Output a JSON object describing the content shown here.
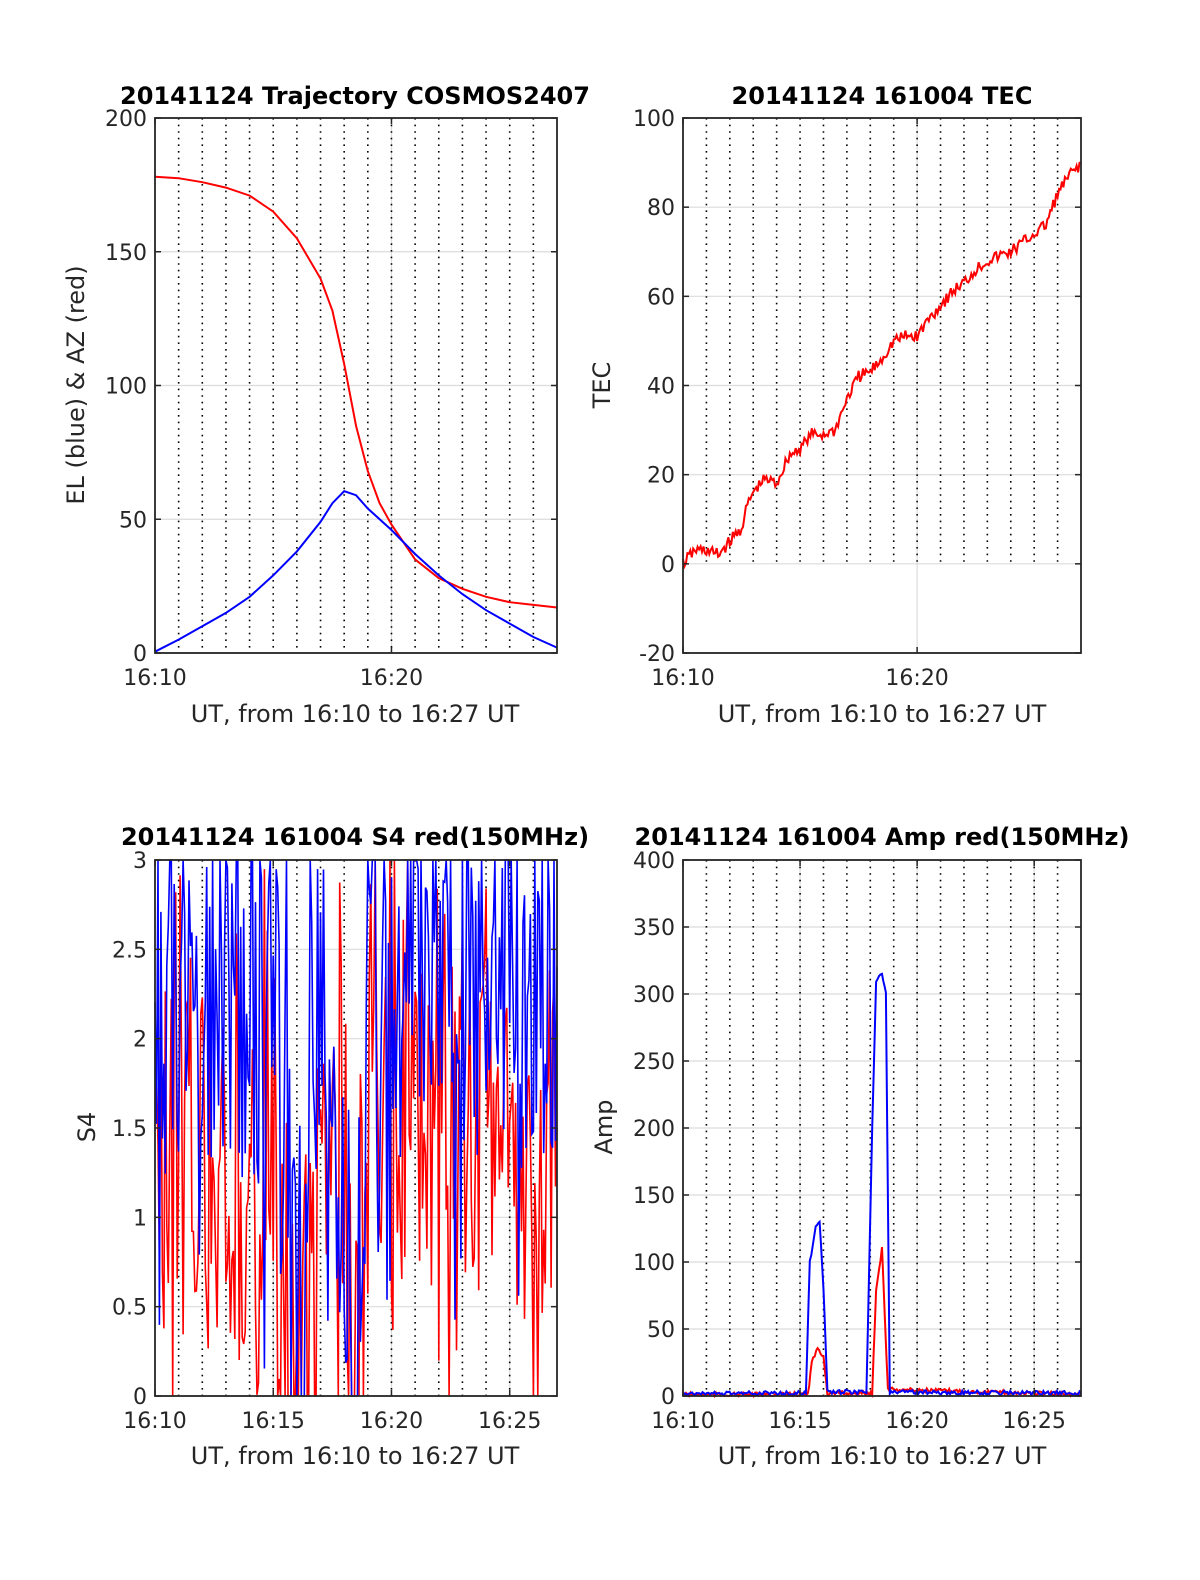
{
  "figure": {
    "background": "#ffffff",
    "colors": {
      "axis": "#262626",
      "grid_solid": "#dcdcdc",
      "grid_dotted": "#000000",
      "red": "#ff0000",
      "blue": "#0000ff"
    }
  },
  "chart_data": [
    {
      "id": "trajectory",
      "type": "line",
      "title": "20141124 Trajectory COSMOS2407",
      "xlabel": "UT, from 16:10 to 16:27 UT",
      "ylabel": "EL (blue) & AZ (red)",
      "xlim": [
        "16:10",
        "16:27"
      ],
      "ylim": [
        0,
        200
      ],
      "xticks": [
        "16:10",
        "16:20"
      ],
      "yticks": [
        0,
        50,
        100,
        150,
        200
      ],
      "dotted_vlines_every_min": 1,
      "grid": true,
      "series": [
        {
          "color": "#ff0000",
          "points": [
            [
              "16:10",
              178
            ],
            [
              "16:11",
              177.5
            ],
            [
              "16:12",
              176
            ],
            [
              "16:13",
              174
            ],
            [
              "16:14",
              171
            ],
            [
              "16:15",
              165
            ],
            [
              "16:16",
              155
            ],
            [
              "16:17",
              140
            ],
            [
              "16:17:30",
              128
            ],
            [
              "16:18",
              108
            ],
            [
              "16:18:30",
              85
            ],
            [
              "16:19",
              68
            ],
            [
              "16:19:30",
              56
            ],
            [
              "16:20",
              48
            ],
            [
              "16:21",
              35
            ],
            [
              "16:22",
              28
            ],
            [
              "16:23",
              24
            ],
            [
              "16:24",
              21
            ],
            [
              "16:25",
              19
            ],
            [
              "16:26",
              18
            ],
            [
              "16:27",
              17
            ]
          ]
        },
        {
          "color": "#0000ff",
          "points": [
            [
              "16:10",
              0.5
            ],
            [
              "16:11",
              5
            ],
            [
              "16:12",
              10
            ],
            [
              "16:13",
              15
            ],
            [
              "16:14",
              21
            ],
            [
              "16:15",
              29
            ],
            [
              "16:16",
              38
            ],
            [
              "16:17",
              49
            ],
            [
              "16:17:30",
              56
            ],
            [
              "16:18",
              60.5
            ],
            [
              "16:18:30",
              59
            ],
            [
              "16:19",
              54
            ],
            [
              "16:20",
              46
            ],
            [
              "16:21",
              37
            ],
            [
              "16:22",
              29
            ],
            [
              "16:23",
              22
            ],
            [
              "16:24",
              16
            ],
            [
              "16:25",
              11
            ],
            [
              "16:26",
              6
            ],
            [
              "16:27",
              2
            ]
          ]
        }
      ]
    },
    {
      "id": "tec",
      "type": "line",
      "title": "20141124 161004 TEC",
      "xlabel": "UT, from 16:10 to 16:27 UT",
      "ylabel": "TEC",
      "xlim": [
        "16:10",
        "16:27"
      ],
      "ylim": [
        -20,
        100
      ],
      "xticks": [
        "16:10",
        "16:20"
      ],
      "yticks": [
        -20,
        0,
        20,
        40,
        60,
        80,
        100
      ],
      "dotted_vlines_every_min": 1,
      "dotted_vlines_range": [
        0,
        100
      ],
      "grid": true,
      "series": [
        {
          "color": "#ff0000",
          "points": [
            [
              "16:10",
              0
            ],
            [
              "16:10:30",
              3
            ],
            [
              "16:11",
              3
            ],
            [
              "16:11:30",
              2
            ],
            [
              "16:12",
              5
            ],
            [
              "16:12:30",
              8
            ],
            [
              "16:12:45",
              13
            ],
            [
              "16:13",
              16
            ],
            [
              "16:13:30",
              19
            ],
            [
              "16:14",
              18
            ],
            [
              "16:14:30",
              24
            ],
            [
              "16:15",
              26
            ],
            [
              "16:15:30",
              29
            ],
            [
              "16:16",
              29
            ],
            [
              "16:16:30",
              30
            ],
            [
              "16:17",
              37
            ],
            [
              "16:17:30",
              42
            ],
            [
              "16:18",
              43
            ],
            [
              "16:18:30",
              46
            ],
            [
              "16:19",
              50
            ],
            [
              "16:19:30",
              51
            ],
            [
              "16:20",
              51
            ],
            [
              "16:20:30",
              55
            ],
            [
              "16:21",
              58
            ],
            [
              "16:21:30",
              61
            ],
            [
              "16:22",
              63
            ],
            [
              "16:22:30",
              66
            ],
            [
              "16:23",
              68
            ],
            [
              "16:23:30",
              69
            ],
            [
              "16:24",
              70
            ],
            [
              "16:24:30",
              72
            ],
            [
              "16:25",
              74
            ],
            [
              "16:25:30",
              76
            ],
            [
              "16:26",
              83
            ],
            [
              "16:26:30",
              87
            ],
            [
              "16:27",
              90
            ]
          ]
        }
      ]
    },
    {
      "id": "s4",
      "type": "line",
      "title": "20141124 161004 S4 red(150MHz)",
      "xlabel": "UT, from 16:10 to 16:27 UT",
      "ylabel": "S4",
      "xlim": [
        "16:10",
        "16:27"
      ],
      "ylim": [
        0,
        3
      ],
      "xticks": [
        "16:10",
        "16:15",
        "16:20",
        "16:25"
      ],
      "yticks": [
        0,
        0.5,
        1,
        1.5,
        2,
        2.5,
        3
      ],
      "dotted_vlines_every_min": 1,
      "grid": true,
      "series": [
        {
          "color": "#ff0000",
          "points": [
            [
              "16:10",
              1.6
            ],
            [
              "16:11",
              1.3
            ],
            [
              "16:12",
              1.2
            ],
            [
              "16:13",
              1.4
            ],
            [
              "16:14",
              1.1
            ],
            [
              "16:15",
              0.9
            ],
            [
              "16:15:30",
              0.6
            ],
            [
              "16:16",
              0.1
            ],
            [
              "16:16:30",
              0.8
            ],
            [
              "16:17",
              0.9
            ],
            [
              "16:17:30",
              1.0
            ],
            [
              "16:18",
              0.7
            ],
            [
              "16:18:30",
              0.2
            ],
            [
              "16:19",
              1.2
            ],
            [
              "16:20",
              1.8
            ],
            [
              "16:21",
              1.6
            ],
            [
              "16:22",
              1.7
            ],
            [
              "16:23",
              1.5
            ],
            [
              "16:24",
              1.6
            ],
            [
              "16:25",
              1.4
            ],
            [
              "16:26",
              1.5
            ],
            [
              "16:27",
              1.5
            ]
          ]
        },
        {
          "color": "#0000ff",
          "points": [
            [
              "16:10",
              2.5
            ],
            [
              "16:11",
              2.4
            ],
            [
              "16:12",
              2.3
            ],
            [
              "16:13",
              2.4
            ],
            [
              "16:14",
              2.2
            ],
            [
              "16:15",
              2.0
            ],
            [
              "16:15:30",
              1.7
            ],
            [
              "16:16",
              0.2
            ],
            [
              "16:16:30",
              1.9
            ],
            [
              "16:17",
              2.1
            ],
            [
              "16:17:30",
              1.6
            ],
            [
              "16:18",
              1.1
            ],
            [
              "16:18:30",
              0.1
            ],
            [
              "16:19",
              2.3
            ],
            [
              "16:20",
              2.2
            ],
            [
              "16:21",
              2.4
            ],
            [
              "16:22",
              2.5
            ],
            [
              "16:23",
              2.3
            ],
            [
              "16:24",
              2.4
            ],
            [
              "16:25",
              2.2
            ],
            [
              "16:26",
              2.3
            ],
            [
              "16:27",
              2.4
            ]
          ]
        }
      ]
    },
    {
      "id": "amp",
      "type": "line",
      "title": "20141124 161004 Amp red(150MHz)",
      "xlabel": "UT, from 16:10 to 16:27 UT",
      "ylabel": "Amp",
      "xlim": [
        "16:10",
        "16:27"
      ],
      "ylim": [
        0,
        400
      ],
      "xticks": [
        "16:10",
        "16:15",
        "16:20",
        "16:25"
      ],
      "yticks": [
        0,
        50,
        100,
        150,
        200,
        250,
        300,
        350,
        400
      ],
      "dotted_vlines_every_min": 1,
      "grid": true,
      "series": [
        {
          "color": "#ff0000",
          "points": [
            [
              "16:10",
              1
            ],
            [
              "16:15:20",
              1
            ],
            [
              "16:15:30",
              25
            ],
            [
              "16:15:45",
              35
            ],
            [
              "16:16",
              30
            ],
            [
              "16:16:10",
              2
            ],
            [
              "16:18:05",
              2
            ],
            [
              "16:18:15",
              80
            ],
            [
              "16:18:30",
              110
            ],
            [
              "16:18:45",
              5
            ],
            [
              "16:27",
              1
            ]
          ]
        },
        {
          "color": "#0000ff",
          "points": [
            [
              "16:10",
              2
            ],
            [
              "16:15:15",
              2
            ],
            [
              "16:15:25",
              100
            ],
            [
              "16:15:40",
              125
            ],
            [
              "16:15:50",
              130
            ],
            [
              "16:16",
              80
            ],
            [
              "16:16:10",
              3
            ],
            [
              "16:17:50",
              3
            ],
            [
              "16:18:05",
              200
            ],
            [
              "16:18:15",
              310
            ],
            [
              "16:18:30",
              315
            ],
            [
              "16:18:40",
              300
            ],
            [
              "16:18:50",
              3
            ],
            [
              "16:27",
              2
            ]
          ]
        }
      ]
    }
  ]
}
